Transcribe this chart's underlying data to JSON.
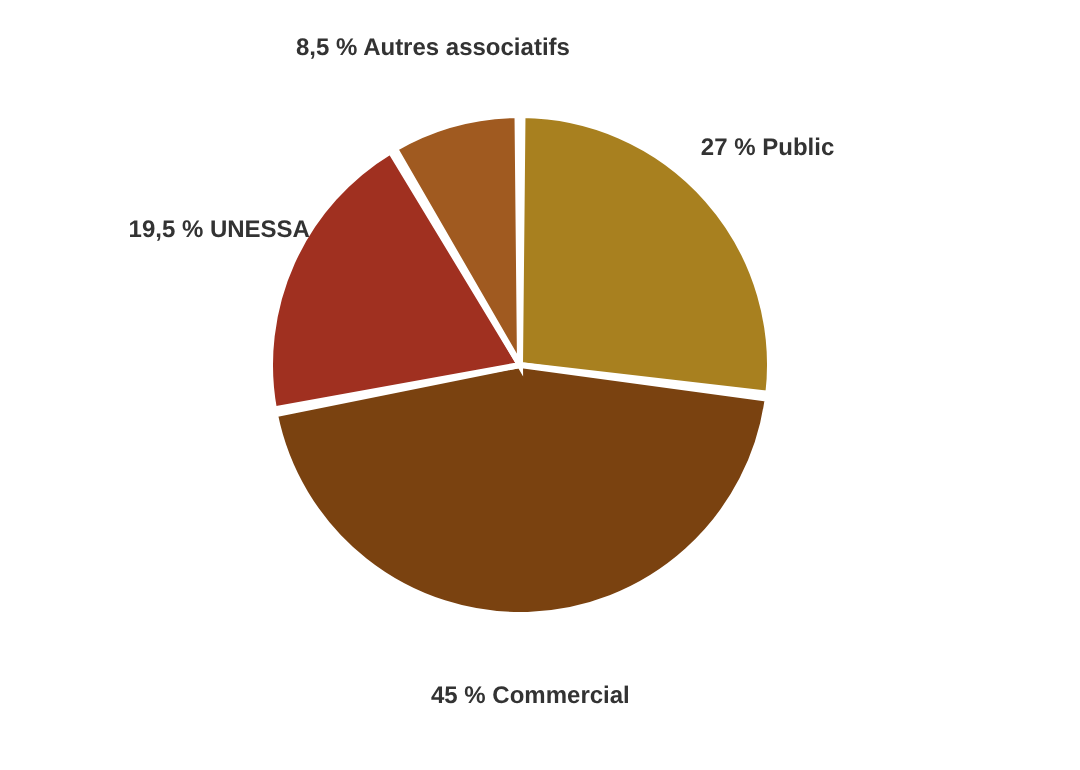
{
  "chart_data": {
    "type": "pie",
    "categories": [
      "Public",
      "Commercial",
      "UNESSA",
      "Autres associatifs"
    ],
    "values": [
      27,
      45,
      19.5,
      8.5
    ],
    "value_labels": [
      "27 %",
      "45 %",
      "19,5 %",
      "8,5 %"
    ],
    "colors": [
      "#a8801f",
      "#7a4210",
      "#a03020",
      "#a05a20"
    ],
    "legend": false
  }
}
